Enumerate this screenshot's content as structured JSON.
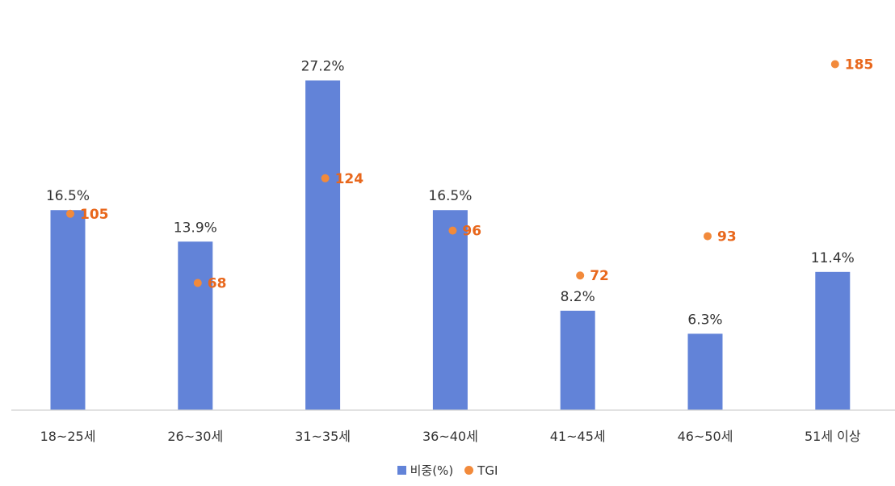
{
  "chart_data": {
    "type": "bar",
    "categories": [
      "18~25세",
      "26~30세",
      "31~35세",
      "36~40세",
      "41~45세",
      "46~50세",
      "51세 이상"
    ],
    "series": [
      {
        "name": "비중(%)",
        "kind": "bar",
        "values": [
          16.5,
          13.9,
          27.2,
          16.5,
          8.2,
          6.3,
          11.4
        ],
        "labels": [
          "16.5%",
          "13.9%",
          "27.2%",
          "16.5%",
          "8.2%",
          "6.3%",
          "11.4%"
        ],
        "color": "#6283D8"
      },
      {
        "name": "TGI",
        "kind": "scatter",
        "values": [
          105,
          68,
          124,
          96,
          72,
          93,
          185
        ],
        "labels": [
          "105",
          "68",
          "124",
          "96",
          "72",
          "93",
          "185"
        ],
        "color": "#F28A3B",
        "label_color": "#E8671C"
      }
    ],
    "ylim_bars": [
      0,
      32.5
    ],
    "ylim_tgi": [
      0,
      215
    ],
    "grid": false,
    "legend": "bottom"
  }
}
